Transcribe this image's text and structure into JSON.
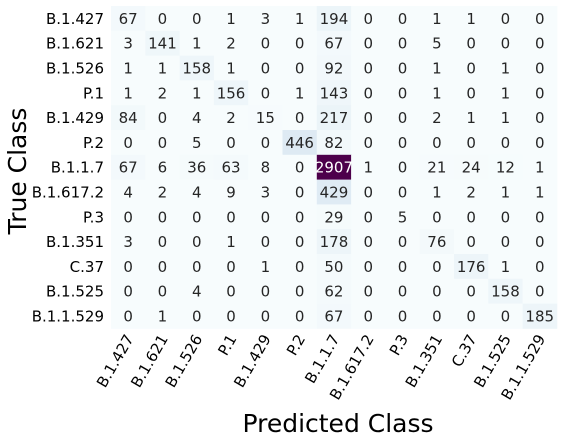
{
  "chart_data": {
    "type": "heatmap",
    "title": "",
    "xlabel": "Predicted Class",
    "ylabel": "True Class",
    "x_categories": [
      "B.1.427",
      "B.1.621",
      "B.1.526",
      "P.1",
      "B.1.429",
      "P.2",
      "B.1.1.7",
      "B.1.617.2",
      "P.3",
      "B.1.351",
      "C.37",
      "B.1.525",
      "B.1.1.529"
    ],
    "y_categories": [
      "B.1.427",
      "B.1.621",
      "B.1.526",
      "P.1",
      "B.1.429",
      "P.2",
      "B.1.1.7",
      "B.1.617.2",
      "P.3",
      "B.1.351",
      "C.37",
      "B.1.525",
      "B.1.1.529"
    ],
    "values": [
      [
        67,
        0,
        0,
        1,
        3,
        1,
        194,
        0,
        0,
        1,
        1,
        0,
        0
      ],
      [
        3,
        141,
        1,
        2,
        0,
        0,
        67,
        0,
        0,
        5,
        0,
        0,
        0
      ],
      [
        1,
        1,
        158,
        1,
        0,
        0,
        92,
        0,
        0,
        1,
        0,
        1,
        0
      ],
      [
        1,
        2,
        1,
        156,
        0,
        1,
        143,
        0,
        0,
        1,
        0,
        1,
        0
      ],
      [
        84,
        0,
        4,
        2,
        15,
        0,
        217,
        0,
        0,
        2,
        1,
        1,
        0
      ],
      [
        0,
        0,
        5,
        0,
        0,
        446,
        82,
        0,
        0,
        0,
        0,
        0,
        0
      ],
      [
        67,
        6,
        36,
        63,
        8,
        0,
        2907,
        1,
        0,
        21,
        24,
        12,
        1
      ],
      [
        4,
        2,
        4,
        9,
        3,
        0,
        429,
        0,
        0,
        1,
        2,
        1,
        1
      ],
      [
        0,
        0,
        0,
        0,
        0,
        0,
        29,
        0,
        5,
        0,
        0,
        0,
        0
      ],
      [
        3,
        0,
        0,
        1,
        0,
        0,
        178,
        0,
        0,
        76,
        0,
        0,
        0
      ],
      [
        0,
        0,
        0,
        0,
        1,
        0,
        50,
        0,
        0,
        0,
        176,
        1,
        0
      ],
      [
        0,
        0,
        4,
        0,
        0,
        0,
        62,
        0,
        0,
        0,
        0,
        158,
        0
      ],
      [
        0,
        1,
        0,
        0,
        0,
        0,
        67,
        0,
        0,
        0,
        0,
        0,
        185
      ]
    ],
    "color_scale": [
      "#f7fcfd",
      "#e0ecf4",
      "#bfd3e6",
      "#9ebcda",
      "#8c96c6",
      "#8c6bb1",
      "#88419d",
      "#4d004b"
    ],
    "value_range": [
      0,
      2907
    ],
    "legend": "none",
    "grid": false
  }
}
